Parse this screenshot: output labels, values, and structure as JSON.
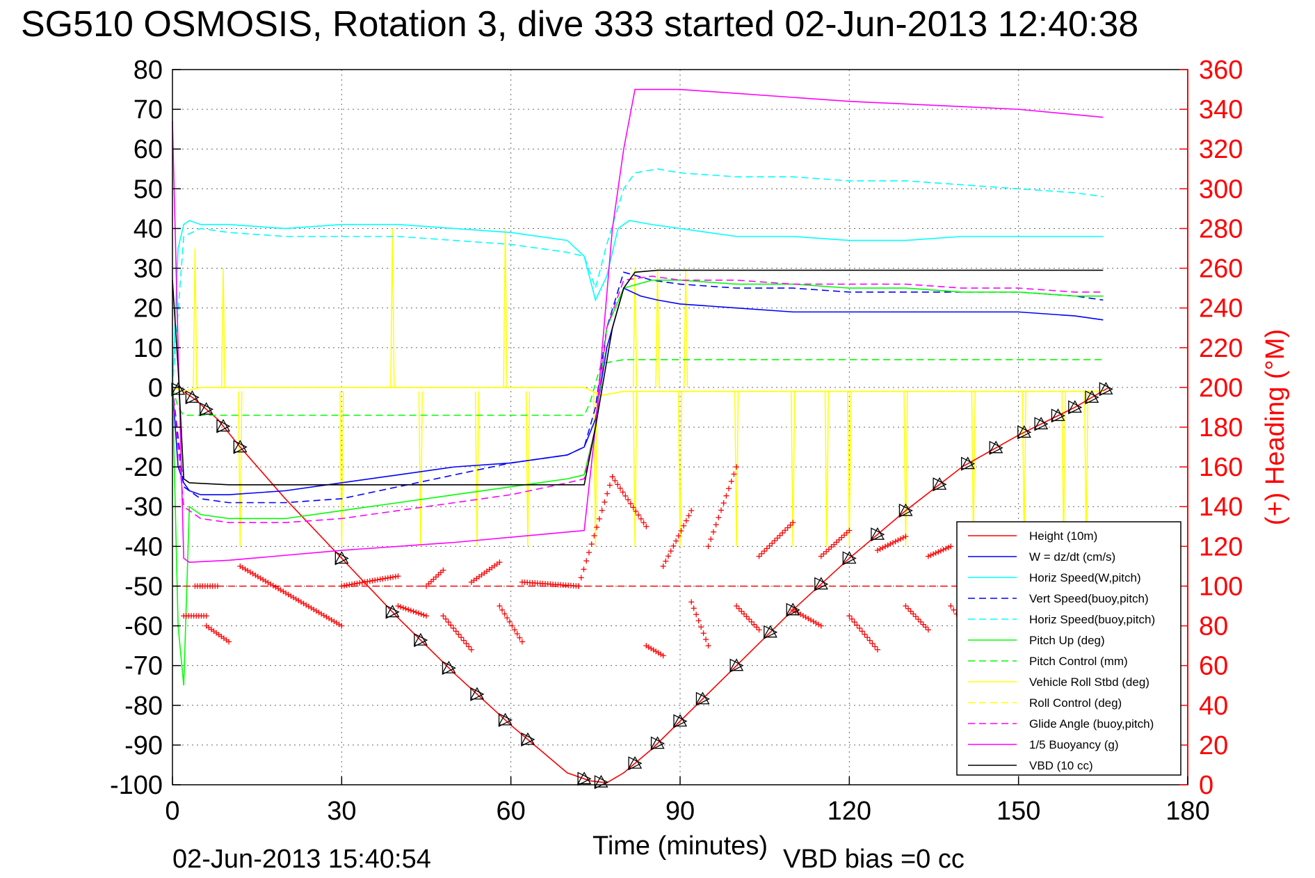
{
  "chart_data": {
    "type": "line",
    "title": "SG510 OSMOSIS, Rotation 3, dive 333 started 02-Jun-2013 12:40:38",
    "xlabel": "Time (minutes)",
    "ylabel": "",
    "ylabel_right": "(+) Heading (°M)",
    "xlim": [
      0,
      180
    ],
    "ylim": [
      -100,
      80
    ],
    "ylim_right": [
      0,
      360
    ],
    "grid": true,
    "legend_position": "bottom-right",
    "x_ticks": [
      "0",
      "30",
      "60",
      "90",
      "120",
      "150",
      "180"
    ],
    "y_ticks": [
      "-100",
      "-90",
      "-80",
      "-70",
      "-60",
      "-50",
      "-40",
      "-30",
      "-20",
      "-10",
      "0",
      "10",
      "20",
      "30",
      "40",
      "50",
      "60",
      "70",
      "80"
    ],
    "y_ticks_right": [
      "0",
      "20",
      "40",
      "60",
      "80",
      "100",
      "120",
      "140",
      "160",
      "180",
      "200",
      "220",
      "240",
      "260",
      "280",
      "300",
      "320",
      "340",
      "360"
    ],
    "footer_left": "02-Jun-2013 15:40:54",
    "footer_right": "VBD bias =0 cc",
    "colors": {
      "height": "#ff0000",
      "w": "#0000ff",
      "cyan": "#00ffff",
      "green": "#00ff00",
      "yellow": "#ffff00",
      "magenta": "#ff00ff",
      "vbd": "#000000",
      "heading": "#ff0000"
    },
    "series": [
      {
        "name": "Height (10m)",
        "color": "#ff0000",
        "dash": "solid",
        "x": [
          0,
          2,
          4,
          8,
          12,
          20,
          30,
          40,
          50,
          60,
          70,
          74,
          77,
          80,
          85,
          90,
          100,
          110,
          120,
          130,
          140,
          150,
          160,
          166
        ],
        "y": [
          0,
          -1,
          -3,
          -8,
          -15,
          -28,
          -43,
          -58,
          -72,
          -85,
          -97,
          -99,
          -99.5,
          -97,
          -91,
          -84,
          -70,
          -56,
          -43,
          -31,
          -20,
          -12,
          -5,
          0
        ]
      },
      {
        "name": "W = dz/dt (cm/s)",
        "color": "#0000ff",
        "dash": "solid",
        "x": [
          0,
          1,
          2,
          3,
          5,
          10,
          20,
          30,
          40,
          50,
          60,
          65,
          70,
          73,
          75,
          77,
          80,
          83,
          86,
          90,
          100,
          110,
          120,
          130,
          140,
          150,
          160,
          165
        ],
        "y": [
          0,
          -20,
          -24,
          -26,
          -27,
          -27,
          -26,
          -24,
          -22,
          -20,
          -19,
          -18,
          -17,
          -15,
          -8,
          10,
          25,
          23,
          22,
          21,
          20,
          19,
          19,
          19,
          19,
          19,
          18,
          17
        ]
      },
      {
        "name": "Horiz Speed(W,pitch)",
        "color": "#00ffff",
        "dash": "solid",
        "x": [
          0,
          1,
          2,
          3,
          5,
          10,
          20,
          30,
          40,
          50,
          60,
          70,
          73,
          75,
          77,
          79,
          81,
          85,
          90,
          100,
          110,
          120,
          130,
          140,
          150,
          160,
          165
        ],
        "y": [
          0,
          35,
          41,
          42,
          41,
          41,
          40,
          41,
          41,
          40,
          39,
          37,
          33,
          22,
          28,
          40,
          42,
          41,
          40,
          38,
          38,
          37,
          37,
          38,
          38,
          38,
          38
        ]
      },
      {
        "name": "Vert Speed(buoy,pitch)",
        "color": "#0000ff",
        "dash": "dashed",
        "x": [
          0,
          2,
          5,
          10,
          20,
          30,
          40,
          50,
          60,
          70,
          73,
          75,
          77,
          80,
          85,
          90,
          100,
          110,
          120,
          130,
          140,
          150,
          160,
          165
        ],
        "y": [
          0,
          -25,
          -28,
          -29,
          -29,
          -28,
          -25,
          -22,
          -19,
          -17,
          -15,
          -5,
          15,
          29,
          27,
          26,
          25,
          25,
          24,
          24,
          24,
          24,
          23,
          22
        ]
      },
      {
        "name": "Horiz Speed(buoy,pitch)",
        "color": "#00ffff",
        "dash": "dashed",
        "x": [
          0,
          2,
          5,
          10,
          20,
          30,
          40,
          50,
          60,
          70,
          73,
          75,
          77,
          80,
          82,
          86,
          90,
          100,
          110,
          120,
          130,
          140,
          150,
          160,
          165
        ],
        "y": [
          0,
          38,
          40,
          39,
          38,
          38,
          38,
          37,
          36,
          34,
          33,
          25,
          36,
          50,
          54,
          55,
          54,
          53,
          53,
          52,
          52,
          51,
          50,
          49,
          48
        ]
      },
      {
        "name": "Pitch Up (deg)",
        "color": "#00ff00",
        "dash": "solid",
        "x": [
          0,
          1,
          2,
          3,
          5,
          10,
          20,
          30,
          40,
          50,
          60,
          70,
          73,
          75,
          77,
          80,
          85,
          90,
          100,
          110,
          120,
          130,
          140,
          150,
          160,
          165
        ],
        "y": [
          0,
          -60,
          -75,
          -30,
          -32,
          -33,
          -33,
          -31,
          -29,
          -27,
          -25,
          -23,
          -22,
          -10,
          15,
          25,
          27,
          27,
          26,
          26,
          25,
          25,
          24,
          24,
          23,
          23
        ]
      },
      {
        "name": "Pitch Control (mm)",
        "color": "#00ff00",
        "dash": "dashed",
        "x": [
          0,
          1,
          2,
          10,
          30,
          50,
          73,
          74,
          76,
          80,
          90,
          120,
          150,
          165
        ],
        "y": [
          0,
          -5,
          -7,
          -7,
          -7,
          -7,
          -7,
          -4,
          6,
          7,
          7,
          7,
          7,
          7
        ]
      },
      {
        "name": "Vehicle Roll Stbd (deg)",
        "color": "#ffff00",
        "dash": "solid",
        "x": [
          0,
          2,
          5,
          10,
          20,
          30,
          40,
          50,
          60,
          73,
          76,
          80,
          90,
          100,
          110,
          120,
          130,
          140,
          150,
          160,
          165
        ],
        "y": [
          0,
          -1,
          0,
          0,
          0,
          0,
          0,
          0,
          0,
          0,
          -2,
          -1,
          -1,
          -1,
          -1,
          -1,
          -1,
          -1,
          -1,
          -1,
          -1
        ]
      },
      {
        "name": "Roll Control (deg)",
        "color": "#ffff00",
        "dash": "dashed",
        "x": [
          0,
          2,
          5,
          10,
          20,
          30,
          40,
          50,
          60,
          73,
          76,
          80,
          90,
          100,
          110,
          120,
          130,
          140,
          150,
          160,
          165
        ],
        "y": [
          0,
          -1,
          0,
          0,
          0,
          0,
          0,
          0,
          0,
          0,
          -2,
          -1,
          -1,
          -1,
          -1,
          -1,
          -1,
          -1,
          -1,
          -1,
          -1
        ]
      },
      {
        "name": "Glide Angle (buoy,pitch)",
        "color": "#ff00ff",
        "dash": "dashed",
        "x": [
          0,
          2,
          5,
          10,
          20,
          30,
          40,
          50,
          60,
          70,
          73,
          75,
          77,
          80,
          85,
          90,
          100,
          110,
          120,
          130,
          140,
          150,
          160,
          165
        ],
        "y": [
          0,
          -30,
          -33,
          -34,
          -34,
          -33,
          -31,
          -29,
          -27,
          -24,
          -23,
          -10,
          15,
          27,
          28,
          27,
          27,
          26,
          26,
          26,
          25,
          25,
          24,
          24
        ]
      },
      {
        "name": "1/5 Buoyancy (g)",
        "color": "#ff00ff",
        "dash": "solid",
        "x": [
          0,
          1,
          2,
          3,
          10,
          30,
          50,
          73,
          75,
          78,
          80,
          82,
          90,
          120,
          150,
          165
        ],
        "y": [
          67,
          10,
          -43,
          -44,
          -43.5,
          -41,
          -39,
          -36,
          -10,
          40,
          60,
          75,
          75,
          72,
          70,
          68
        ]
      },
      {
        "name": "VBD (10 cc)",
        "color": "#000000",
        "dash": "solid",
        "x": [
          0,
          1,
          2,
          3,
          10,
          30,
          50,
          73,
          75,
          78,
          80,
          82,
          86,
          90,
          120,
          150,
          165
        ],
        "y": [
          27,
          5,
          -23,
          -24,
          -24.5,
          -24.5,
          -24.5,
          -24.5,
          -10,
          15,
          25,
          29,
          29.5,
          29.5,
          29.5,
          29.5,
          29.5
        ]
      }
    ],
    "roll_spikes": {
      "up_x": [
        4,
        9,
        39,
        59,
        82,
        86,
        91
      ],
      "up_peak": [
        35,
        30,
        40,
        40,
        30,
        30,
        30
      ],
      "down_x": [
        12,
        30,
        44,
        54,
        63,
        75,
        82,
        90,
        100,
        110,
        116,
        120,
        130,
        142,
        151,
        158,
        162
      ],
      "down_peak": [
        -40,
        -40,
        -40,
        -40,
        -40,
        -40,
        -40,
        -40,
        -40,
        -40,
        -40,
        -40,
        -40,
        -40,
        -40,
        -40,
        -40
      ],
      "heading_top": [
        38,
        32,
        32,
        35,
        33,
        32,
        33,
        30,
        28,
        29,
        30,
        30,
        30,
        29,
        28,
        27,
        27
      ]
    },
    "heading": {
      "name": "Heading",
      "axis": "right",
      "marker": "+",
      "desired": 100,
      "dive_segments": [
        {
          "x": [
            2,
            6
          ],
          "y": [
            85,
            85
          ]
        },
        {
          "x": [
            4,
            8
          ],
          "y": [
            100,
            100
          ]
        },
        {
          "x": [
            6,
            10
          ],
          "y": [
            80,
            72
          ]
        },
        {
          "x": [
            12,
            30
          ],
          "y": [
            110,
            80
          ]
        },
        {
          "x": [
            30,
            40
          ],
          "y": [
            100,
            105
          ]
        },
        {
          "x": [
            40,
            45
          ],
          "y": [
            90,
            85
          ]
        },
        {
          "x": [
            45,
            48
          ],
          "y": [
            100,
            108
          ]
        },
        {
          "x": [
            48,
            53
          ],
          "y": [
            85,
            68
          ]
        },
        {
          "x": [
            53,
            58
          ],
          "y": [
            102,
            112
          ]
        },
        {
          "x": [
            58,
            62
          ],
          "y": [
            90,
            72
          ]
        },
        {
          "x": [
            62,
            72
          ],
          "y": [
            102,
            100
          ]
        }
      ],
      "climb_segments": [
        {
          "x": [
            72,
            78
          ],
          "y": [
            100,
            155
          ]
        },
        {
          "x": [
            78,
            84
          ],
          "y": [
            155,
            130
          ]
        },
        {
          "x": [
            84,
            87
          ],
          "y": [
            70,
            65
          ]
        },
        {
          "x": [
            87,
            92
          ],
          "y": [
            110,
            138
          ]
        },
        {
          "x": [
            92,
            95
          ],
          "y": [
            92,
            70
          ]
        },
        {
          "x": [
            95,
            100
          ],
          "y": [
            120,
            160
          ]
        },
        {
          "x": [
            100,
            104
          ],
          "y": [
            90,
            78
          ]
        },
        {
          "x": [
            104,
            110
          ],
          "y": [
            115,
            132
          ]
        },
        {
          "x": [
            110,
            115
          ],
          "y": [
            88,
            80
          ]
        },
        {
          "x": [
            115,
            120
          ],
          "y": [
            115,
            128
          ]
        },
        {
          "x": [
            120,
            125
          ],
          "y": [
            85,
            68
          ]
        },
        {
          "x": [
            125,
            130
          ],
          "y": [
            118,
            125
          ]
        },
        {
          "x": [
            130,
            134
          ],
          "y": [
            90,
            78
          ]
        },
        {
          "x": [
            134,
            138
          ],
          "y": [
            115,
            120
          ]
        },
        {
          "x": [
            138,
            140
          ],
          "y": [
            90,
            82
          ]
        }
      ]
    },
    "triangle_markers_x": [
      1,
      3.5,
      6,
      9,
      12,
      30,
      39,
      44,
      49,
      54,
      59,
      63,
      73,
      76,
      82,
      86,
      90,
      94,
      100,
      106,
      110,
      115,
      120,
      125,
      130,
      136,
      141,
      146,
      151,
      154,
      157,
      160,
      163,
      165.5
    ]
  }
}
